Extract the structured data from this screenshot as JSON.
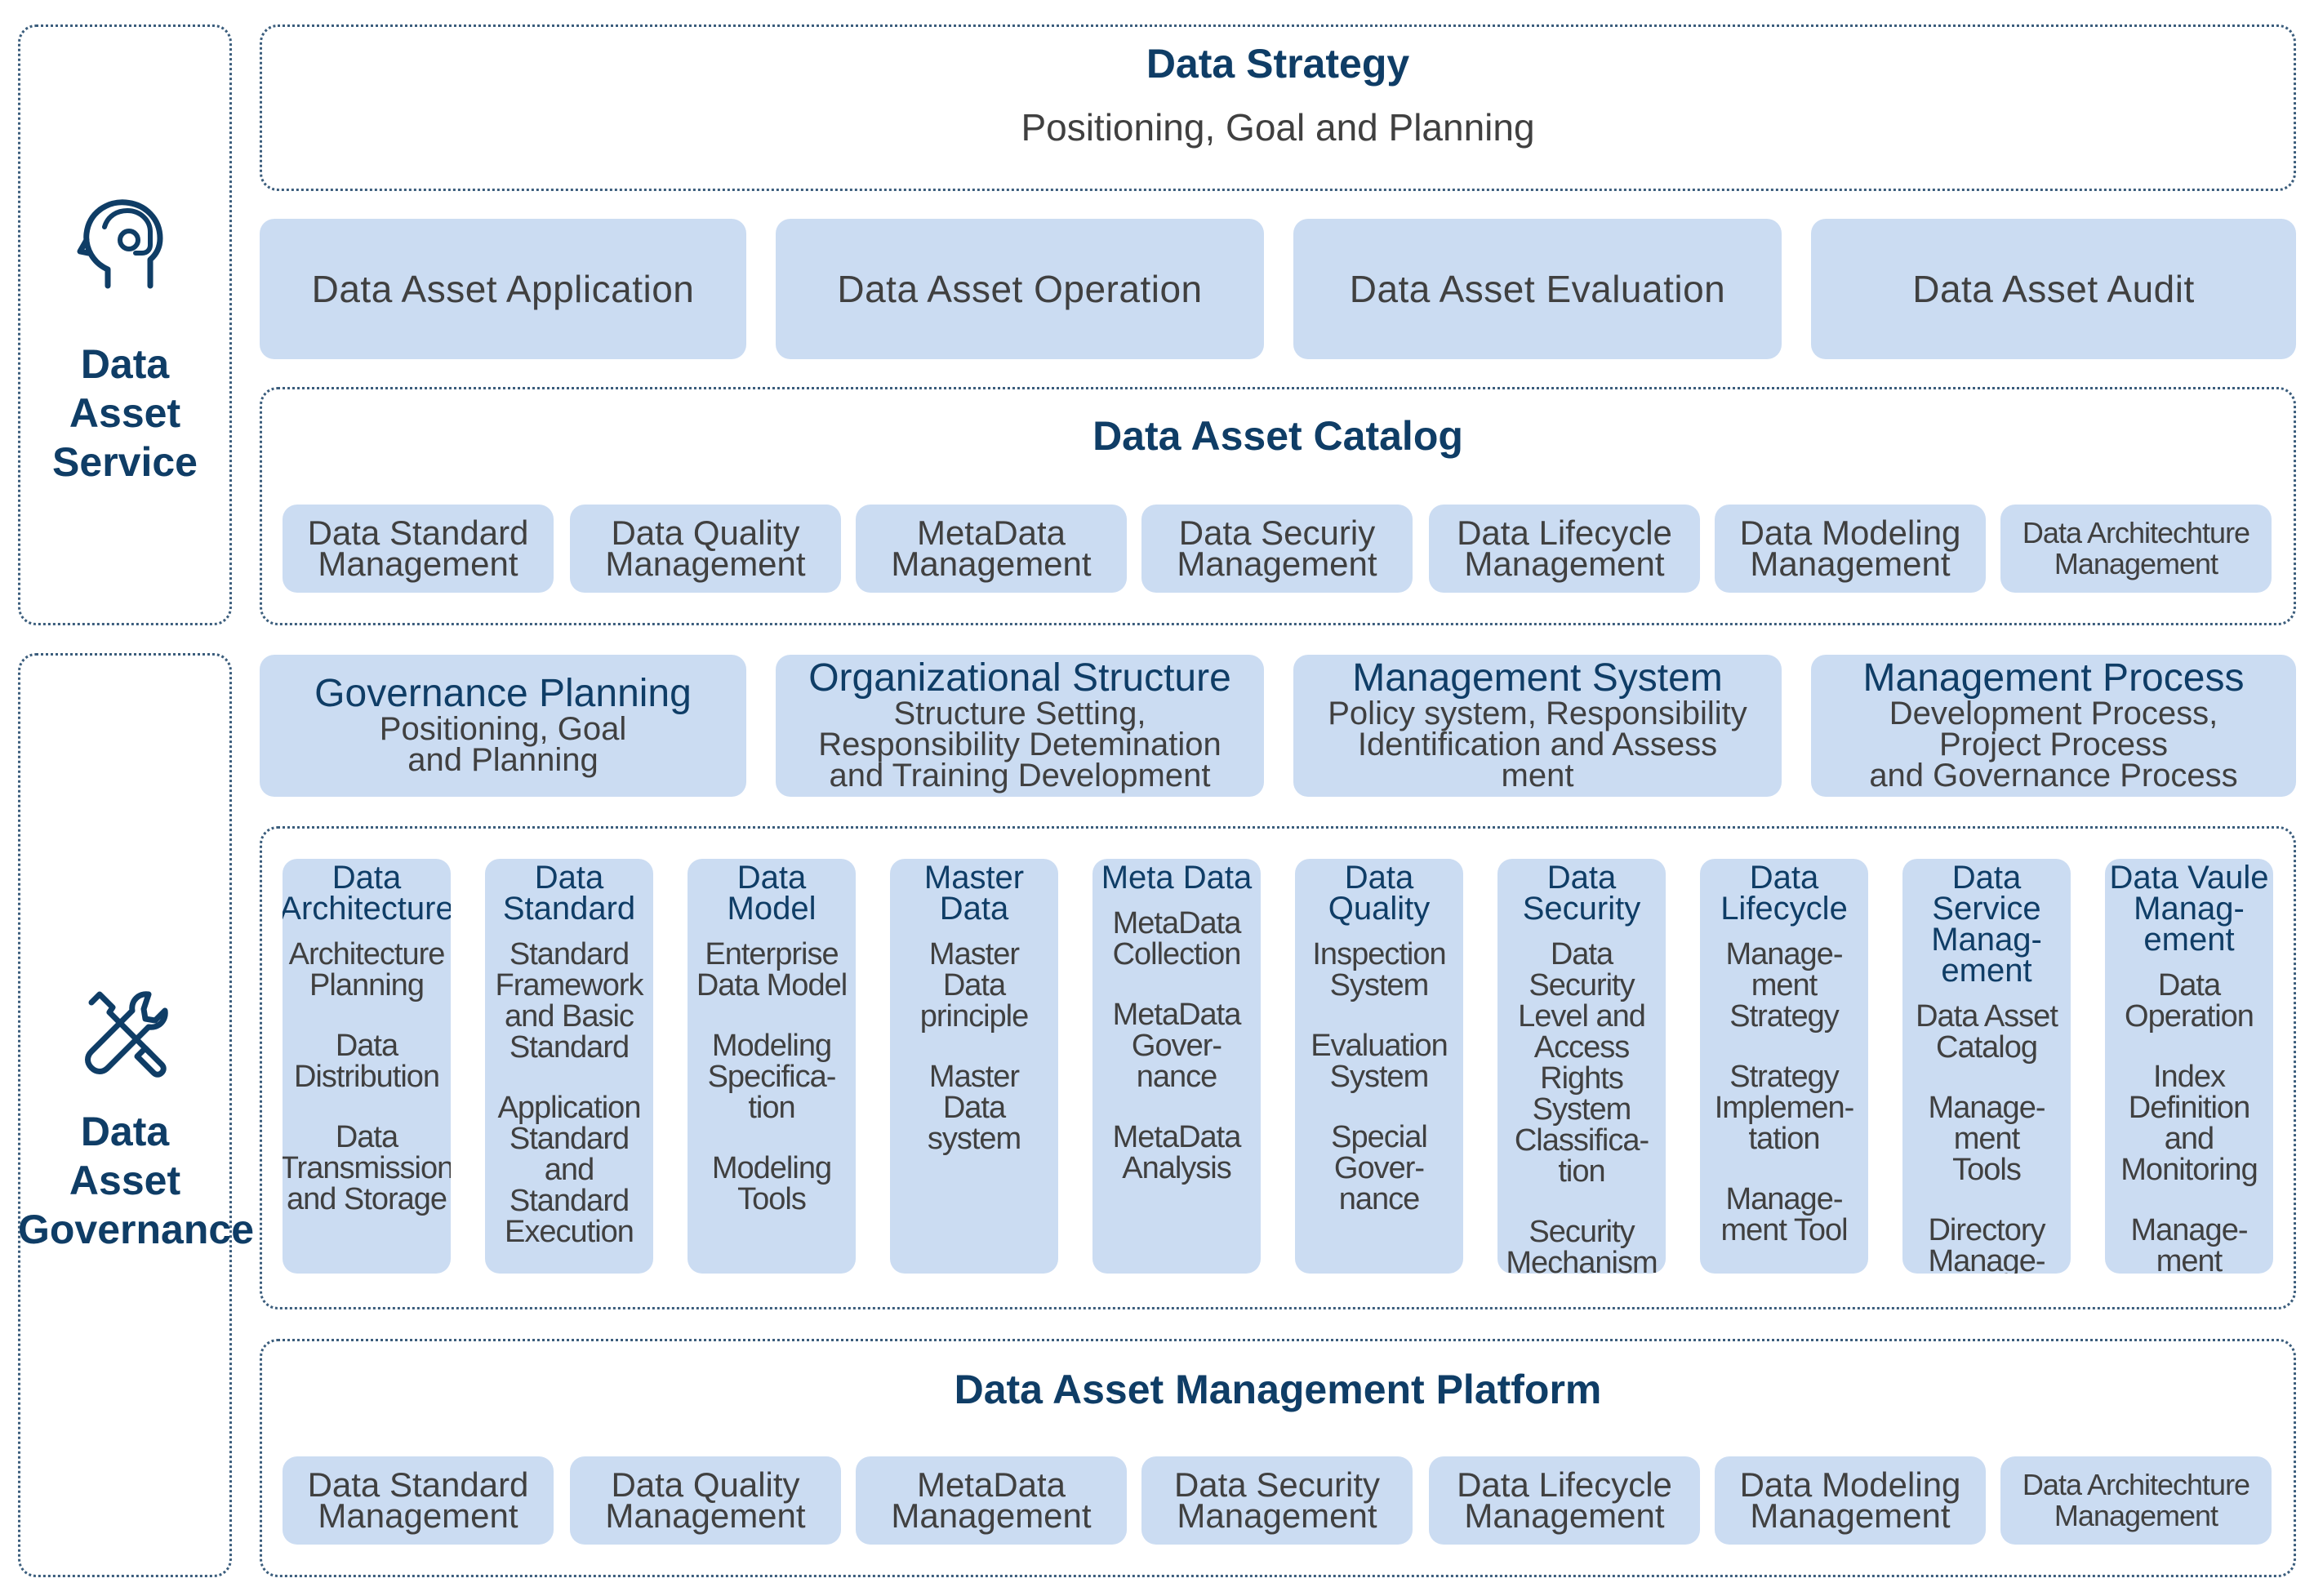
{
  "left": {
    "service_title": "Data\nAsset\nService",
    "governance_title": "Data\nAsset\nGovernance"
  },
  "strategy": {
    "title": "Data Strategy",
    "subtitle": "Positioning, Goal and Planning"
  },
  "asset_blocks": [
    "Data Asset Application",
    "Data Asset Operation",
    "Data Asset Evaluation",
    "Data Asset Audit"
  ],
  "catalog": {
    "title": "Data Asset Catalog",
    "items": [
      "Data Standard\nManagement",
      "Data Quality\nManagement",
      "MetaData\nManagement",
      "Data Securiy\nManagement",
      "Data Lifecycle\nManagement",
      "Data Modeling\nManagement",
      "Data Architechture\nManagement"
    ]
  },
  "planning": [
    {
      "title": "Governance Planning",
      "desc": "Positioning, Goal\nand Planning"
    },
    {
      "title": "Organizational Structure",
      "desc": "Structure Setting,\nResponsibility Detemination\nand Training Development"
    },
    {
      "title": "Management System",
      "desc": "Policy system, Responsibility\nIdentification and Assess\nment"
    },
    {
      "title": "Management Process",
      "desc": "Development Process,\nProject Process\nand Governance Process"
    }
  ],
  "columns": [
    {
      "title": "Data\nArchitecture",
      "items": [
        "Architecture\nPlanning",
        "Data\nDistribution",
        "Data\nTransmission\nand Storage"
      ]
    },
    {
      "title": "Data\nStandard",
      "items": [
        "Standard\nFramework\nand Basic\nStandard",
        "Application\nStandard\nand\nStandard\nExecution"
      ]
    },
    {
      "title": "Data\nModel",
      "items": [
        "Enterprise\nData Model",
        "Modeling\nSpecifica-\ntion",
        "Modeling\nTools"
      ]
    },
    {
      "title": "Master\nData",
      "items": [
        "Master\nData\nprinciple",
        "Master\nData\nsystem"
      ]
    },
    {
      "title": "Meta Data",
      "items": [
        "MetaData\nCollection",
        "MetaData\nGover-\nnance",
        "MetaData\nAnalysis"
      ]
    },
    {
      "title": "Data\nQuality",
      "items": [
        "Inspection\nSystem",
        "Evaluation\nSystem",
        "Special\nGover-\nnance"
      ]
    },
    {
      "title": "Data\nSecurity",
      "items": [
        "Data\nSecurity\nLevel and\nAccess\nRights\nSystem\nClassifica-\ntion",
        "Security\nMechanism"
      ]
    },
    {
      "title": "Data\nLifecycle",
      "items": [
        "Manage-\nment\nStrategy",
        "Strategy\nImplemen-\ntation",
        "Manage-\nment Tool"
      ]
    },
    {
      "title": "Data Service\nManag-\nement",
      "items": [
        "Data Asset\nCatalog",
        "Manage-\nment\nTools",
        "Directory\nManage-\nment\nProcess"
      ]
    },
    {
      "title": "Data Vaule\nManag-\nement",
      "items": [
        "Data\nOperation",
        "Index\nDefinition\nand\nMonitoring",
        "Manage-\nment\nTools"
      ]
    }
  ],
  "platform": {
    "title": "Data Asset Management Platform",
    "items": [
      "Data Standard\nManagement",
      "Data Quality\nManagement",
      "MetaData\nManagement",
      "Data Security\nManagement",
      "Data Lifecycle\nManagement",
      "Data Modeling\nManagement",
      "Data Architechture\nManagement"
    ]
  },
  "colors": {
    "accent": "#0f3d66",
    "block": "#cbdcf2",
    "border": "#3b5d7c",
    "text": "#404040"
  },
  "icons": {
    "service": "headset-person-icon",
    "governance": "tools-wrench-screwdriver-icon"
  }
}
